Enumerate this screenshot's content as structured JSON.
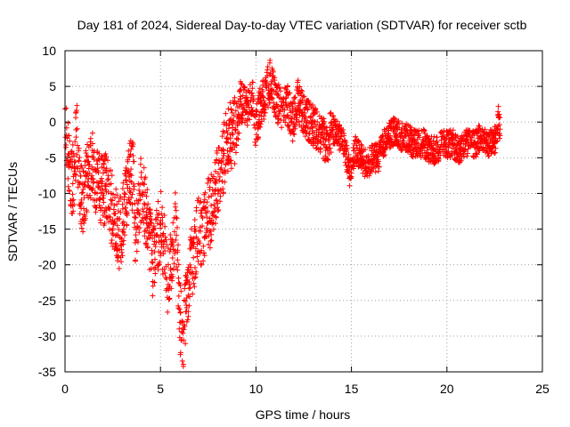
{
  "chart_data": {
    "type": "scatter",
    "title": "Day 181 of 2024, Sidereal Day-to-day VTEC variation (SDTVAR) for receiver sctb",
    "xlabel": "GPS time / hours",
    "ylabel": "SDTVAR / TECUs",
    "xlim": [
      0,
      25
    ],
    "ylim": [
      -35,
      10
    ],
    "xticks": [
      0,
      5,
      10,
      15,
      20,
      25
    ],
    "yticks": [
      -35,
      -30,
      -25,
      -20,
      -15,
      -10,
      -5,
      0,
      5,
      10
    ],
    "xtick_labels": [
      "0",
      "5",
      "10",
      "15",
      "20",
      "25"
    ],
    "ytick_labels": [
      "-35",
      "-30",
      "-25",
      "-20",
      "-15",
      "-10",
      "-5",
      "0",
      "5",
      "10"
    ],
    "grid": true,
    "marker": "+",
    "color": "#ff0000",
    "series": [
      {
        "name": "SDTVAR",
        "trend": [
          [
            0.0,
            -2
          ],
          [
            0.2,
            -5
          ],
          [
            0.35,
            -9
          ],
          [
            0.5,
            -7
          ],
          [
            0.6,
            -1
          ],
          [
            0.7,
            -6
          ],
          [
            0.85,
            -11
          ],
          [
            1.0,
            -10
          ],
          [
            1.2,
            -7
          ],
          [
            1.4,
            -6
          ],
          [
            1.6,
            -8
          ],
          [
            1.8,
            -9
          ],
          [
            2.0,
            -10
          ],
          [
            2.2,
            -9
          ],
          [
            2.4,
            -12
          ],
          [
            2.6,
            -13
          ],
          [
            2.8,
            -16
          ],
          [
            3.0,
            -14
          ],
          [
            3.2,
            -10
          ],
          [
            3.4,
            -7
          ],
          [
            3.6,
            -8
          ],
          [
            3.7,
            -18
          ],
          [
            3.8,
            -13
          ],
          [
            4.0,
            -9
          ],
          [
            4.2,
            -12
          ],
          [
            4.4,
            -15
          ],
          [
            4.6,
            -20
          ],
          [
            4.8,
            -17
          ],
          [
            5.0,
            -14
          ],
          [
            5.2,
            -18
          ],
          [
            5.4,
            -22
          ],
          [
            5.6,
            -19
          ],
          [
            5.8,
            -14
          ],
          [
            6.0,
            -27
          ],
          [
            6.2,
            -30
          ],
          [
            6.4,
            -24
          ],
          [
            6.6,
            -20
          ],
          [
            6.8,
            -18
          ],
          [
            7.0,
            -14
          ],
          [
            7.2,
            -17
          ],
          [
            7.4,
            -12
          ],
          [
            7.6,
            -13
          ],
          [
            7.8,
            -11
          ],
          [
            8.0,
            -8
          ],
          [
            8.2,
            -7
          ],
          [
            8.4,
            -4
          ],
          [
            8.6,
            -2
          ],
          [
            8.8,
            -2
          ],
          [
            9.0,
            -1
          ],
          [
            9.2,
            3
          ],
          [
            9.5,
            2
          ],
          [
            9.8,
            4
          ],
          [
            10.0,
            -1
          ],
          [
            10.2,
            2
          ],
          [
            10.5,
            4
          ],
          [
            10.8,
            6
          ],
          [
            11.0,
            3
          ],
          [
            11.3,
            2
          ],
          [
            11.6,
            3
          ],
          [
            11.9,
            0
          ],
          [
            12.2,
            3
          ],
          [
            12.5,
            1
          ],
          [
            12.8,
            0
          ],
          [
            13.1,
            -1
          ],
          [
            13.4,
            -2
          ],
          [
            13.7,
            -3
          ],
          [
            14.0,
            -1
          ],
          [
            14.3,
            -2
          ],
          [
            14.6,
            -3
          ],
          [
            14.9,
            -7
          ],
          [
            15.2,
            -4
          ],
          [
            15.5,
            -5
          ],
          [
            15.8,
            -6
          ],
          [
            16.1,
            -5
          ],
          [
            16.4,
            -5
          ],
          [
            16.7,
            -3
          ],
          [
            17.0,
            -2
          ],
          [
            17.3,
            -1
          ],
          [
            17.6,
            -2
          ],
          [
            17.9,
            -2
          ],
          [
            18.2,
            -3
          ],
          [
            18.5,
            -3
          ],
          [
            18.8,
            -3
          ],
          [
            19.1,
            -4
          ],
          [
            19.4,
            -4
          ],
          [
            19.7,
            -3
          ],
          [
            20.0,
            -3
          ],
          [
            20.3,
            -3
          ],
          [
            20.6,
            -4
          ],
          [
            20.9,
            -3
          ],
          [
            21.2,
            -3
          ],
          [
            21.5,
            -3
          ],
          [
            21.8,
            -2
          ],
          [
            22.1,
            -3
          ],
          [
            22.4,
            -3
          ],
          [
            22.6,
            -2
          ],
          [
            22.7,
            1
          ],
          [
            22.8,
            -2
          ]
        ]
      }
    ]
  }
}
